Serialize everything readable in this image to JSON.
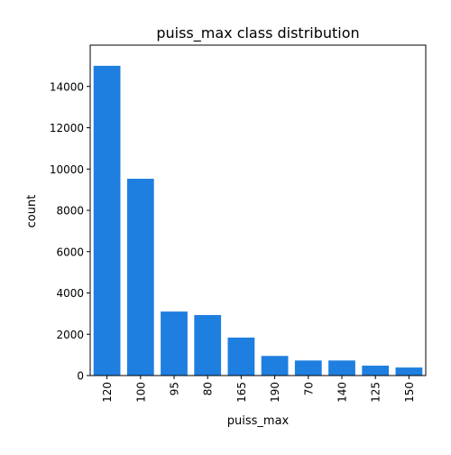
{
  "chart_data": {
    "type": "bar",
    "title": "puiss_max class distribution",
    "xlabel": "puiss_max",
    "ylabel": "count",
    "categories": [
      "120",
      "100",
      "95",
      "80",
      "165",
      "190",
      "70",
      "140",
      "125",
      "150"
    ],
    "values": [
      15000,
      9530,
      3100,
      2930,
      1840,
      950,
      730,
      730,
      480,
      390
    ],
    "ylim": [
      0,
      16000
    ],
    "yticks": [
      0,
      2000,
      4000,
      6000,
      8000,
      10000,
      12000,
      14000
    ],
    "bar_color": "#1f7fe0",
    "grid": false,
    "legend": "none",
    "xtick_rotation": "vertical"
  }
}
